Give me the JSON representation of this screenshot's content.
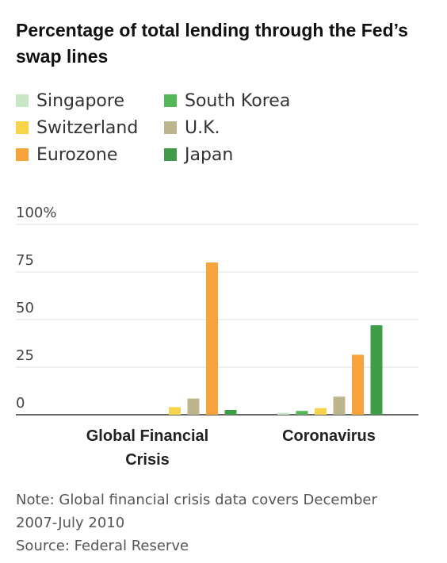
{
  "title": "Percentage of total lending through the Fed’s swap lines",
  "colors": {
    "Singapore": "#c9e6c6",
    "South Korea": "#55b858",
    "Switzerland": "#f7d44c",
    "U.K.": "#bdb58d",
    "Eurozone": "#f5a33a",
    "Japan": "#3f9c48"
  },
  "legend": [
    "Singapore",
    "South Korea",
    "Switzerland",
    "U.K.",
    "Eurozone",
    "Japan"
  ],
  "chart_data": {
    "type": "bar",
    "categories": [
      "Global Financial Crisis",
      "Coronavirus"
    ],
    "category_labels": [
      [
        "Global Financial",
        "Crisis"
      ],
      [
        "Coronavirus"
      ]
    ],
    "series": [
      {
        "name": "Singapore",
        "values": [
          0,
          1
        ]
      },
      {
        "name": "South Korea",
        "values": [
          0,
          2
        ]
      },
      {
        "name": "Switzerland",
        "values": [
          4,
          3.5
        ]
      },
      {
        "name": "U.K.",
        "values": [
          8.5,
          9.5
        ]
      },
      {
        "name": "Eurozone",
        "values": [
          80,
          31.5
        ]
      },
      {
        "name": "Japan",
        "values": [
          2.5,
          47
        ]
      }
    ],
    "ylim": [
      0,
      100
    ],
    "yticks": [
      0,
      25,
      50,
      75,
      100
    ],
    "ytick_labels": [
      "0",
      "25",
      "50",
      "75",
      "100%"
    ],
    "grid": true,
    "legend_position": "top-left"
  },
  "note_line1": "Note: Global financial crisis data covers December",
  "note_line2": "2007-July 2010",
  "source": "Source: Federal Reserve"
}
